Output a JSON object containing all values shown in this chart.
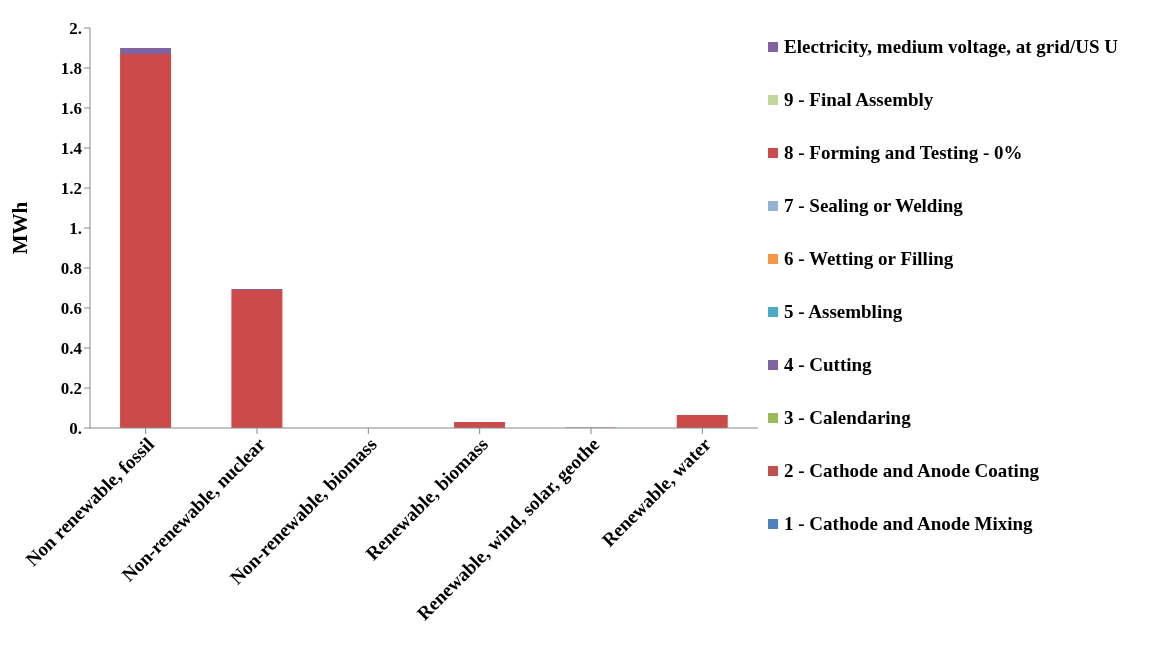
{
  "chart_data": {
    "type": "bar",
    "stacked": true,
    "ylabel": "MWh",
    "categories": [
      "Non renewable, fossil",
      "Non-renewable, nuclear",
      "Non-renewable, biomass",
      "Renewable, biomass",
      "Renewable, wind, solar, geothe",
      "Renewable, water"
    ],
    "series": [
      {
        "name": "1 - Cathode and Anode Mixing",
        "color": "#4f81bd",
        "values": [
          0,
          0,
          0,
          0,
          0,
          0
        ]
      },
      {
        "name": "2 - Cathode and Anode Coating",
        "color": "#c0504d",
        "values": [
          0,
          0,
          0,
          0,
          0,
          0
        ]
      },
      {
        "name": "3 - Calendaring",
        "color": "#9bbb59",
        "values": [
          0,
          0,
          0,
          0,
          0,
          0
        ]
      },
      {
        "name": "4 - Cutting",
        "color": "#8064a2",
        "values": [
          0,
          0,
          0,
          0,
          0,
          0
        ]
      },
      {
        "name": "5 - Assembling",
        "color": "#4bacc6",
        "values": [
          0,
          0,
          0,
          0,
          0,
          0
        ]
      },
      {
        "name": "6 - Wetting or Filling",
        "color": "#f79646",
        "values": [
          0,
          0,
          0,
          0,
          0,
          0
        ]
      },
      {
        "name": "7 - Sealing or Welding",
        "color": "#95b3d7",
        "values": [
          0,
          0,
          0,
          0,
          0,
          0
        ]
      },
      {
        "name": "8 - Forming and Testing - 0%",
        "color": "#cc4a4a",
        "values": [
          1.87,
          0.69,
          0,
          0.03,
          0.003,
          0.065
        ]
      },
      {
        "name": "9 - Final Assembly",
        "color": "#c3d69b",
        "values": [
          0,
          0,
          0,
          0,
          0,
          0
        ]
      },
      {
        "name": "Electricity, medium voltage, at grid/US U",
        "color": "#8064a2",
        "values": [
          0.03,
          0.005,
          0,
          0,
          0,
          0
        ]
      }
    ],
    "ylim": [
      0,
      2
    ],
    "yticks": [
      {
        "value": 0,
        "label": "0."
      },
      0.2,
      0.4,
      0.6,
      0.8,
      {
        "value": 1,
        "label": "1."
      },
      1.2,
      1.4,
      1.6,
      1.8,
      {
        "value": 2,
        "label": "2."
      }
    ],
    "grid": false,
    "legend": "right"
  }
}
